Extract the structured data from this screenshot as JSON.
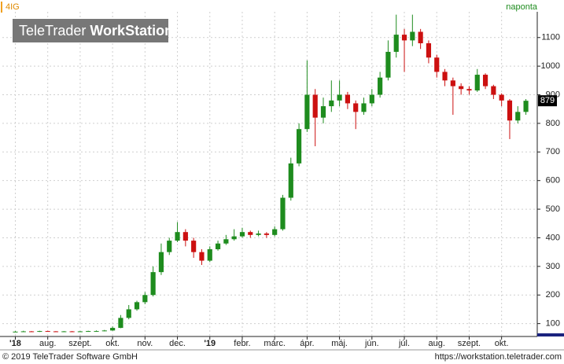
{
  "chart_data": {
    "type": "candlestick",
    "symbol": "4IG",
    "period": "naponta",
    "watermark_light": "TeleTrader",
    "watermark_bold": "WorkStation",
    "footer_left": "© 2019 TeleTrader Software GmbH",
    "footer_right": "https://workstation.teletrader.com",
    "up_color": "#1e8c1e",
    "down_color": "#cc1010",
    "grid": true,
    "xlim": [
      -0.4,
      16.1
    ],
    "ylim": [
      55,
      1190
    ],
    "yticks": [
      100,
      200,
      300,
      400,
      500,
      600,
      700,
      800,
      900,
      1000,
      1100
    ],
    "xticks": [
      {
        "value": 0,
        "label": "'18"
      },
      {
        "value": 1,
        "label": "aug."
      },
      {
        "value": 2,
        "label": "szept."
      },
      {
        "value": 3,
        "label": "okt."
      },
      {
        "value": 4,
        "label": "nov."
      },
      {
        "value": 5,
        "label": "dec."
      },
      {
        "value": 6,
        "label": "'19"
      },
      {
        "value": 7,
        "label": "febr."
      },
      {
        "value": 8,
        "label": "márc."
      },
      {
        "value": 9,
        "label": "ápr."
      },
      {
        "value": 10,
        "label": "máj."
      },
      {
        "value": 11,
        "label": "jún."
      },
      {
        "value": 12,
        "label": "júl."
      },
      {
        "value": 13,
        "label": "aug."
      },
      {
        "value": 14,
        "label": "szept."
      },
      {
        "value": 15,
        "label": "okt."
      }
    ],
    "x": [
      0,
      0.25,
      0.5,
      0.75,
      1,
      1.25,
      1.5,
      1.75,
      2,
      2.25,
      2.5,
      2.75,
      3,
      3.25,
      3.5,
      3.75,
      4,
      4.25,
      4.5,
      4.75,
      5,
      5.25,
      5.5,
      5.75,
      6,
      6.25,
      6.5,
      6.75,
      7,
      7.25,
      7.5,
      7.75,
      8,
      8.25,
      8.5,
      8.75,
      9,
      9.25,
      9.5,
      9.75,
      10,
      10.25,
      10.5,
      10.75,
      11,
      11.25,
      11.5,
      11.75,
      12,
      12.25,
      12.5,
      12.75,
      13,
      13.25,
      13.5,
      13.75,
      14,
      14.25,
      14.5,
      14.75,
      15,
      15.25,
      15.5,
      15.75
    ],
    "open": [
      71,
      72,
      73,
      72,
      74,
      73,
      72,
      73,
      72,
      73,
      74,
      74,
      76,
      85,
      120,
      150,
      175,
      200,
      280,
      350,
      390,
      420,
      390,
      350,
      320,
      360,
      380,
      395,
      405,
      420,
      410,
      415,
      410,
      430,
      540,
      660,
      780,
      900,
      820,
      860,
      880,
      900,
      870,
      840,
      870,
      900,
      960,
      1050,
      1110,
      1090,
      1120,
      1080,
      1030,
      980,
      950,
      930,
      920,
      915,
      970,
      930,
      900,
      880,
      810,
      840
    ],
    "high": [
      74,
      75,
      74,
      75,
      75,
      74,
      74,
      74,
      74,
      75,
      76,
      78,
      90,
      130,
      165,
      180,
      210,
      300,
      380,
      400,
      455,
      430,
      400,
      360,
      370,
      390,
      410,
      430,
      435,
      425,
      425,
      420,
      440,
      550,
      680,
      800,
      1020,
      920,
      890,
      950,
      950,
      910,
      880,
      890,
      920,
      980,
      1090,
      1180,
      1130,
      1180,
      1130,
      1090,
      1040,
      990,
      960,
      940,
      930,
      990,
      975,
      935,
      905,
      885,
      860,
      885
    ],
    "low": [
      70,
      71,
      71,
      71,
      72,
      71,
      71,
      71,
      71,
      72,
      73,
      73,
      75,
      84,
      115,
      145,
      168,
      195,
      270,
      340,
      385,
      370,
      330,
      305,
      315,
      355,
      375,
      390,
      400,
      400,
      405,
      400,
      405,
      425,
      530,
      650,
      770,
      720,
      800,
      840,
      860,
      850,
      780,
      830,
      860,
      890,
      950,
      1030,
      980,
      1070,
      1060,
      1010,
      960,
      930,
      830,
      900,
      900,
      910,
      920,
      885,
      860,
      745,
      800,
      830
    ],
    "close": [
      72,
      73,
      72,
      74,
      73,
      72,
      73,
      72,
      73,
      74,
      74,
      76,
      85,
      120,
      150,
      175,
      200,
      280,
      350,
      390,
      420,
      390,
      350,
      320,
      360,
      380,
      395,
      405,
      420,
      410,
      415,
      410,
      430,
      540,
      660,
      780,
      900,
      820,
      860,
      880,
      900,
      870,
      840,
      870,
      900,
      960,
      1050,
      1110,
      1090,
      1120,
      1080,
      1030,
      980,
      950,
      930,
      920,
      915,
      970,
      930,
      900,
      880,
      810,
      840,
      879
    ]
  }
}
